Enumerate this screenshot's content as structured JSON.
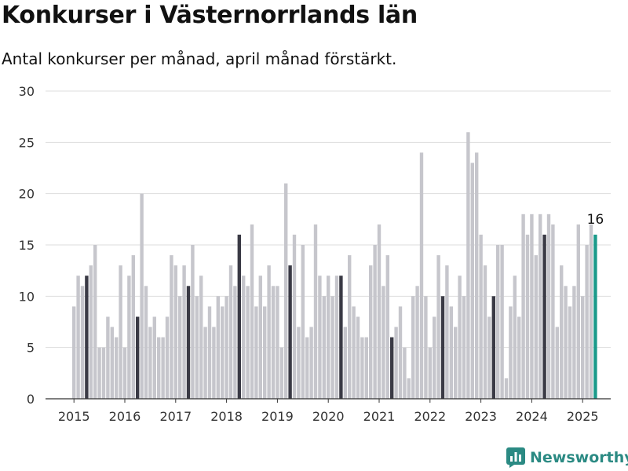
{
  "header": {
    "title": "Konkurser i Västernorrlands län",
    "subtitle": "Antal konkurser per månad, april månad förstärkt."
  },
  "brand": {
    "name": "Newsworthy",
    "icon": "newsworthy-logo-icon",
    "color": "#2b8a83"
  },
  "chart_data": {
    "type": "bar",
    "start": "2015-01",
    "ylim": [
      0,
      30
    ],
    "yticks": [
      0,
      5,
      10,
      15,
      20,
      25,
      30
    ],
    "xticks": [
      "2015",
      "2016",
      "2017",
      "2018",
      "2019",
      "2020",
      "2021",
      "2022",
      "2023",
      "2024",
      "2025"
    ],
    "highlight_month": "april",
    "colors": {
      "default": "#c6c6cc",
      "april": "#3a3a45",
      "latest": "#1a9a8a",
      "grid": "#dddddd",
      "axis": "#333333"
    },
    "latest_label": "16",
    "values": [
      9,
      12,
      11,
      12,
      13,
      15,
      5,
      5,
      8,
      7,
      6,
      13,
      5,
      12,
      14,
      8,
      20,
      11,
      7,
      8,
      6,
      6,
      8,
      14,
      13,
      10,
      13,
      11,
      15,
      10,
      12,
      7,
      9,
      7,
      10,
      9,
      10,
      13,
      11,
      16,
      12,
      11,
      17,
      9,
      12,
      9,
      13,
      11,
      11,
      5,
      21,
      13,
      16,
      7,
      15,
      6,
      7,
      17,
      12,
      10,
      12,
      10,
      12,
      12,
      7,
      14,
      9,
      8,
      6,
      6,
      13,
      15,
      17,
      11,
      14,
      6,
      7,
      9,
      5,
      2,
      10,
      11,
      24,
      10,
      5,
      8,
      14,
      10,
      13,
      9,
      7,
      12,
      10,
      26,
      23,
      24,
      16,
      13,
      8,
      10,
      15,
      15,
      2,
      9,
      12,
      8,
      18,
      16,
      18,
      14,
      18,
      16,
      18,
      17,
      7,
      13,
      11,
      9,
      11,
      17,
      10,
      15,
      17,
      16
    ]
  }
}
